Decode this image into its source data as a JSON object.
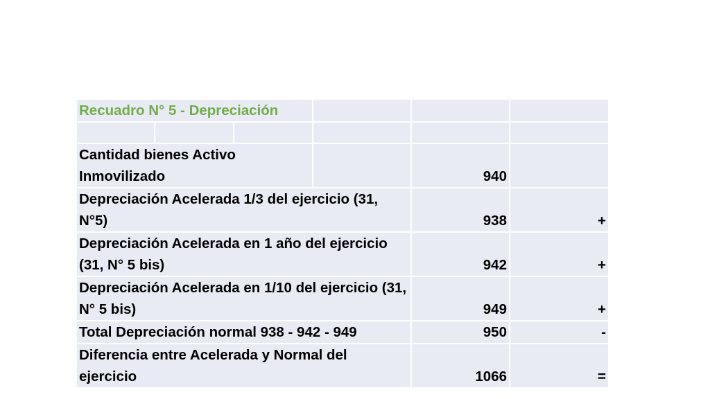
{
  "table": {
    "title": "Recuadro N° 5 - Depreciación",
    "rows": [
      {
        "label": "Cantidad bienes Activo Inmovilizado",
        "value": "940",
        "sign": ""
      },
      {
        "label": "Depreciación Acelerada 1/3 del ejercicio (31, N°5)",
        "value": "938",
        "sign": "+"
      },
      {
        "label": "Depreciación Acelerada en 1 año del ejercicio (31, N° 5 bis)",
        "value": "942",
        "sign": "+"
      },
      {
        "label": "Depreciación Acelerada en 1/10 del ejercicio (31, N° 5 bis)",
        "value": "949",
        "sign": "+"
      },
      {
        "label": "Total Depreciación normal 938 - 942 - 949",
        "value": "950",
        "sign": "-"
      },
      {
        "label": "Diferencia entre Acelerada y Normal del ejercicio",
        "value": "1066",
        "sign": "="
      }
    ]
  },
  "colors": {
    "title": "#70ad47",
    "cell_background": "#e9ebf4",
    "grid_lines": "#ffffff",
    "text": "#000000"
  }
}
